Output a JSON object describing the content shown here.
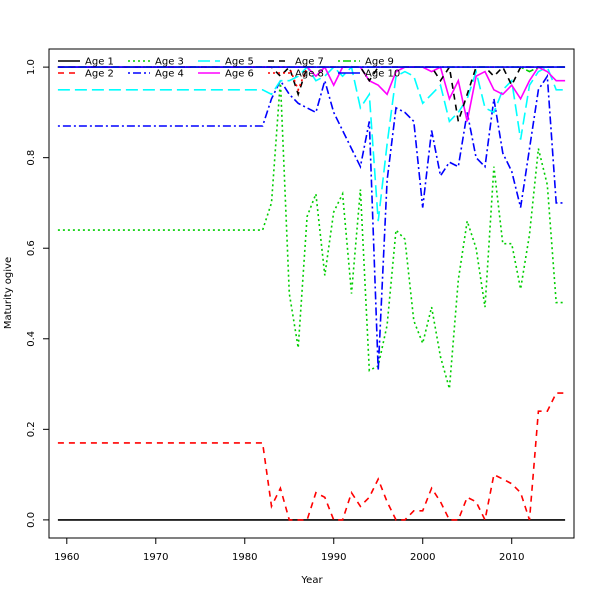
{
  "chart_data": {
    "type": "line",
    "title": "",
    "xlabel": "Year",
    "ylabel": "Maturity ogive",
    "xlim": [
      1958,
      2017
    ],
    "ylim": [
      -0.04,
      1.04
    ],
    "x_ticks": [
      1960,
      1970,
      1980,
      1990,
      2000,
      2010
    ],
    "y_ticks": [
      0.0,
      0.2,
      0.4,
      0.6,
      0.8,
      1.0
    ],
    "x_tick_labels": [
      "1960",
      "1970",
      "1980",
      "1990",
      "2000",
      "2010"
    ],
    "y_tick_labels": [
      "0.0",
      "0.2",
      "0.4",
      "0.6",
      "0.8",
      "1.0"
    ],
    "grid": false,
    "legend_position": "top-left",
    "series": [
      {
        "name": "Age 1",
        "color": "#000000",
        "dash": "solid",
        "points": [
          [
            1959,
            0
          ],
          [
            2016,
            0
          ]
        ]
      },
      {
        "name": "Age 2",
        "color": "#ff0000",
        "dash": "dashed",
        "points": [
          [
            1959,
            0.17
          ],
          [
            1982,
            0.17
          ],
          [
            1983,
            0.03
          ],
          [
            1984,
            0.07
          ],
          [
            1985,
            0.0
          ],
          [
            1986,
            0.0
          ],
          [
            1987,
            0.0
          ],
          [
            1988,
            0.06
          ],
          [
            1989,
            0.05
          ],
          [
            1990,
            0.0
          ],
          [
            1991,
            0.0
          ],
          [
            1992,
            0.06
          ],
          [
            1993,
            0.03
          ],
          [
            1994,
            0.05
          ],
          [
            1995,
            0.09
          ],
          [
            1996,
            0.04
          ],
          [
            1997,
            0.0
          ],
          [
            1998,
            0.0
          ],
          [
            1999,
            0.02
          ],
          [
            2000,
            0.02
          ],
          [
            2001,
            0.07
          ],
          [
            2002,
            0.04
          ],
          [
            2003,
            0.0
          ],
          [
            2004,
            0.0
          ],
          [
            2005,
            0.05
          ],
          [
            2006,
            0.04
          ],
          [
            2007,
            0.0
          ],
          [
            2008,
            0.1
          ],
          [
            2009,
            0.09
          ],
          [
            2010,
            0.08
          ],
          [
            2011,
            0.06
          ],
          [
            2012,
            0.0
          ],
          [
            2013,
            0.24
          ],
          [
            2014,
            0.24
          ],
          [
            2015,
            0.28
          ],
          [
            2016,
            0.28
          ]
        ]
      },
      {
        "name": "Age 3",
        "color": "#00cd00",
        "dash": "dotted",
        "points": [
          [
            1959,
            0.64
          ],
          [
            1982,
            0.64
          ],
          [
            1983,
            0.7
          ],
          [
            1984,
            0.97
          ],
          [
            1985,
            0.5
          ],
          [
            1986,
            0.38
          ],
          [
            1987,
            0.67
          ],
          [
            1988,
            0.72
          ],
          [
            1989,
            0.54
          ],
          [
            1990,
            0.68
          ],
          [
            1991,
            0.72
          ],
          [
            1992,
            0.5
          ],
          [
            1993,
            0.73
          ],
          [
            1994,
            0.33
          ],
          [
            1995,
            0.34
          ],
          [
            1996,
            0.43
          ],
          [
            1997,
            0.64
          ],
          [
            1998,
            0.62
          ],
          [
            1999,
            0.44
          ],
          [
            2000,
            0.39
          ],
          [
            2001,
            0.47
          ],
          [
            2002,
            0.36
          ],
          [
            2003,
            0.29
          ],
          [
            2004,
            0.53
          ],
          [
            2005,
            0.66
          ],
          [
            2006,
            0.6
          ],
          [
            2007,
            0.47
          ],
          [
            2008,
            0.78
          ],
          [
            2009,
            0.61
          ],
          [
            2010,
            0.61
          ],
          [
            2011,
            0.51
          ],
          [
            2012,
            0.63
          ],
          [
            2013,
            0.82
          ],
          [
            2014,
            0.74
          ],
          [
            2015,
            0.48
          ],
          [
            2016,
            0.48
          ]
        ]
      },
      {
        "name": "Age 4",
        "color": "#0000ff",
        "dash": "dotdash",
        "points": [
          [
            1959,
            0.87
          ],
          [
            1982,
            0.87
          ],
          [
            1983,
            0.93
          ],
          [
            1984,
            0.97
          ],
          [
            1985,
            0.94
          ],
          [
            1986,
            0.92
          ],
          [
            1987,
            0.91
          ],
          [
            1988,
            0.9
          ],
          [
            1989,
            0.97
          ],
          [
            1990,
            0.9
          ],
          [
            1991,
            0.86
          ],
          [
            1992,
            0.82
          ],
          [
            1993,
            0.78
          ],
          [
            1994,
            0.88
          ],
          [
            1995,
            0.33
          ],
          [
            1996,
            0.75
          ],
          [
            1997,
            0.91
          ],
          [
            1998,
            0.9
          ],
          [
            1999,
            0.88
          ],
          [
            2000,
            0.69
          ],
          [
            2001,
            0.86
          ],
          [
            2002,
            0.76
          ],
          [
            2003,
            0.79
          ],
          [
            2004,
            0.78
          ],
          [
            2005,
            0.9
          ],
          [
            2006,
            0.8
          ],
          [
            2007,
            0.78
          ],
          [
            2008,
            0.93
          ],
          [
            2009,
            0.81
          ],
          [
            2010,
            0.77
          ],
          [
            2011,
            0.69
          ],
          [
            2012,
            0.82
          ],
          [
            2013,
            0.95
          ],
          [
            2014,
            0.98
          ],
          [
            2015,
            0.7
          ],
          [
            2016,
            0.7
          ]
        ]
      },
      {
        "name": "Age 5",
        "color": "#00ffff",
        "dash": "longdash",
        "points": [
          [
            1959,
            0.95
          ],
          [
            1982,
            0.95
          ],
          [
            1983,
            0.94
          ],
          [
            1984,
            0.97
          ],
          [
            1985,
            0.97
          ],
          [
            1986,
            0.98
          ],
          [
            1987,
            1.0
          ],
          [
            1988,
            0.97
          ],
          [
            1989,
            0.98
          ],
          [
            1990,
            1.0
          ],
          [
            1991,
            0.98
          ],
          [
            1992,
            1.0
          ],
          [
            1993,
            0.91
          ],
          [
            1994,
            0.94
          ],
          [
            1995,
            0.66
          ],
          [
            1996,
            0.83
          ],
          [
            1997,
            0.98
          ],
          [
            1998,
            0.99
          ],
          [
            1999,
            0.98
          ],
          [
            2000,
            0.92
          ],
          [
            2001,
            0.94
          ],
          [
            2002,
            0.96
          ],
          [
            2003,
            0.88
          ],
          [
            2004,
            0.9
          ],
          [
            2005,
            0.93
          ],
          [
            2006,
            0.99
          ],
          [
            2007,
            0.91
          ],
          [
            2008,
            0.9
          ],
          [
            2009,
            0.95
          ],
          [
            2010,
            0.97
          ],
          [
            2011,
            0.84
          ],
          [
            2012,
            0.96
          ],
          [
            2013,
            0.99
          ],
          [
            2014,
            1.0
          ],
          [
            2015,
            0.95
          ],
          [
            2016,
            0.95
          ]
        ]
      },
      {
        "name": "Age 6",
        "color": "#ff00ff",
        "dash": "solid",
        "points": [
          [
            1959,
            1.0
          ],
          [
            1987,
            1.0
          ],
          [
            1988,
            0.98
          ],
          [
            1989,
            1.0
          ],
          [
            1990,
            0.96
          ],
          [
            1991,
            1.0
          ],
          [
            1992,
            1.0
          ],
          [
            1993,
            1.0
          ],
          [
            1994,
            0.97
          ],
          [
            1995,
            0.96
          ],
          [
            1996,
            0.94
          ],
          [
            1997,
            0.99
          ],
          [
            1998,
            1.0
          ],
          [
            1999,
            1.0
          ],
          [
            2000,
            1.0
          ],
          [
            2001,
            0.99
          ],
          [
            2002,
            1.0
          ],
          [
            2003,
            0.93
          ],
          [
            2004,
            0.97
          ],
          [
            2005,
            0.88
          ],
          [
            2006,
            0.98
          ],
          [
            2007,
            0.99
          ],
          [
            2008,
            0.95
          ],
          [
            2009,
            0.94
          ],
          [
            2010,
            0.96
          ],
          [
            2011,
            0.93
          ],
          [
            2012,
            0.97
          ],
          [
            2013,
            1.0
          ],
          [
            2014,
            0.99
          ],
          [
            2015,
            0.97
          ],
          [
            2016,
            0.97
          ]
        ]
      },
      {
        "name": "Age 7",
        "color": "#000000",
        "dash": "dashed",
        "points": [
          [
            1959,
            1.0
          ],
          [
            1983,
            1.0
          ],
          [
            1984,
            0.98
          ],
          [
            1985,
            1.0
          ],
          [
            1986,
            0.94
          ],
          [
            1987,
            1.0
          ],
          [
            1988,
            1.0
          ],
          [
            1989,
            1.0
          ],
          [
            1990,
            1.0
          ],
          [
            1991,
            1.0
          ],
          [
            1992,
            1.0
          ],
          [
            1993,
            1.0
          ],
          [
            1994,
            0.97
          ],
          [
            1995,
            1.0
          ],
          [
            1996,
            1.0
          ],
          [
            1997,
            1.0
          ],
          [
            1998,
            1.0
          ],
          [
            1999,
            1.0
          ],
          [
            2000,
            1.0
          ],
          [
            2001,
            1.0
          ],
          [
            2002,
            0.97
          ],
          [
            2003,
            1.0
          ],
          [
            2004,
            0.88
          ],
          [
            2005,
            0.94
          ],
          [
            2006,
            1.0
          ],
          [
            2007,
            1.0
          ],
          [
            2008,
            0.98
          ],
          [
            2009,
            1.0
          ],
          [
            2010,
            0.96
          ],
          [
            2011,
            1.0
          ],
          [
            2012,
            1.0
          ],
          [
            2013,
            1.0
          ],
          [
            2014,
            1.0
          ],
          [
            2015,
            1.0
          ],
          [
            2016,
            1.0
          ]
        ]
      },
      {
        "name": "Age 8",
        "color": "#ff0000",
        "dash": "dotted",
        "points": [
          [
            1959,
            1.0
          ],
          [
            1985,
            1.0
          ],
          [
            1986,
            0.95
          ],
          [
            1987,
            1.0
          ],
          [
            2016,
            1.0
          ]
        ]
      },
      {
        "name": "Age 9",
        "color": "#00cd00",
        "dash": "dotdash",
        "points": [
          [
            1959,
            1.0
          ],
          [
            2011,
            1.0
          ],
          [
            2012,
            0.99
          ],
          [
            2013,
            1.0
          ],
          [
            2016,
            1.0
          ]
        ]
      },
      {
        "name": "Age 10",
        "color": "#0000ff",
        "dash": "solid",
        "points": [
          [
            1959,
            1.0
          ],
          [
            2016,
            1.0
          ]
        ]
      }
    ]
  }
}
